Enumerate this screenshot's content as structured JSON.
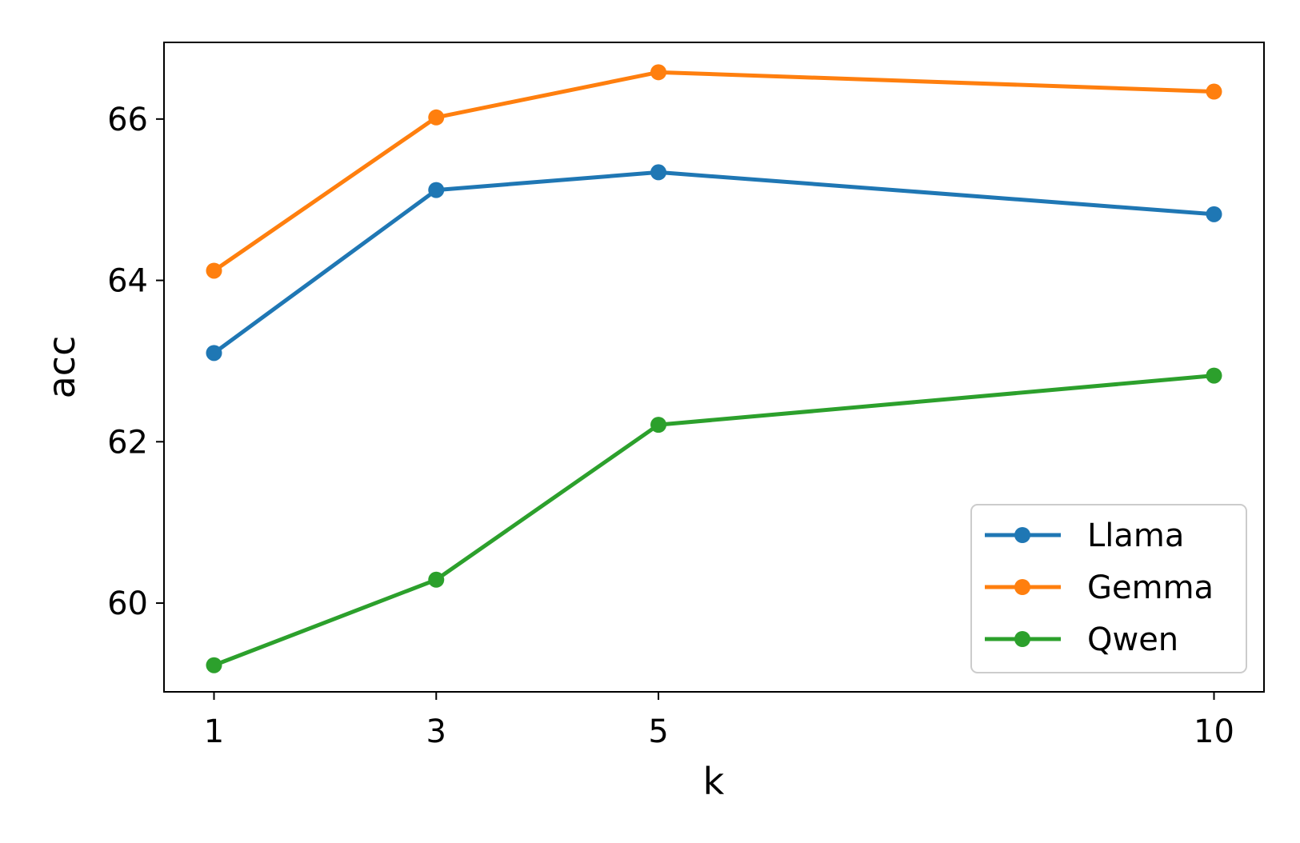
{
  "chart_data": {
    "type": "line",
    "title": "",
    "xlabel": "k",
    "ylabel": "acc",
    "x": [
      1,
      3,
      5,
      10
    ],
    "x_tick_labels": [
      "1",
      "3",
      "5",
      "10"
    ],
    "y_ticks": [
      60,
      62,
      64,
      66
    ],
    "y_tick_labels": [
      "60",
      "62",
      "64",
      "66"
    ],
    "xlim": [
      0.55,
      10.45
    ],
    "ylim": [
      58.9,
      66.95
    ],
    "grid": false,
    "legend_position": "lower-right",
    "series": [
      {
        "name": "Llama",
        "color": "#1f77b4",
        "values": [
          63.1,
          65.12,
          65.34,
          64.82
        ]
      },
      {
        "name": "Gemma",
        "color": "#ff7f0e",
        "values": [
          64.12,
          66.02,
          66.58,
          66.34
        ]
      },
      {
        "name": "Qwen",
        "color": "#2ca02c",
        "values": [
          59.23,
          60.29,
          62.21,
          62.82
        ]
      }
    ]
  }
}
